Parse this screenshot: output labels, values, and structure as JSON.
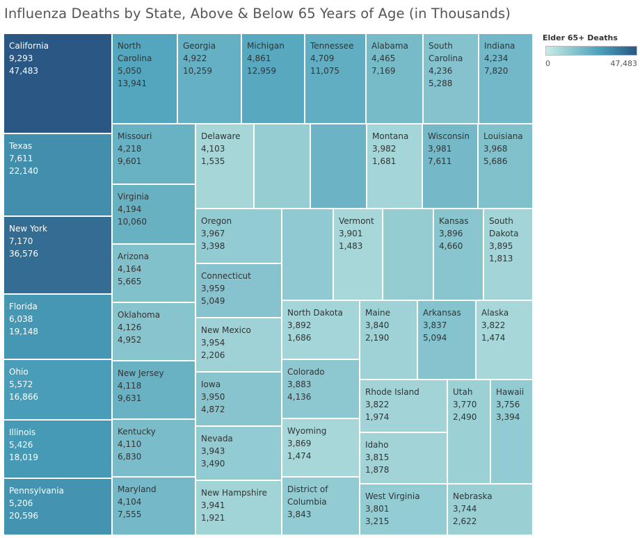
{
  "chart_data": {
    "type": "treemap",
    "title": "Influenza Deaths by State, Above & Below 65 Years of Age (in Thousands)",
    "size_measure": "Under 65 Deaths",
    "color_measure": "Elder 65+ Deaths",
    "legend": {
      "title": "Elder 65+ Deaths",
      "min_label": "0",
      "max_label": "47,483",
      "min": 0,
      "max": 47483,
      "position": "top-right",
      "color_low": "#c9ebe4",
      "color_high": "#2a5783"
    },
    "states": [
      {
        "name": "California",
        "under65": 9293,
        "elder65": 47483
      },
      {
        "name": "Texas",
        "under65": 7611,
        "elder65": 22140
      },
      {
        "name": "New York",
        "under65": 7170,
        "elder65": 36576
      },
      {
        "name": "Florida",
        "under65": 6038,
        "elder65": 19148
      },
      {
        "name": "Ohio",
        "under65": 5572,
        "elder65": 16866
      },
      {
        "name": "Illinois",
        "under65": 5426,
        "elder65": 18019
      },
      {
        "name": "Pennsylvania",
        "under65": 5206,
        "elder65": 20596
      },
      {
        "name": "North Carolina",
        "under65": 5050,
        "elder65": 13941
      },
      {
        "name": "Georgia",
        "under65": 4922,
        "elder65": 10259
      },
      {
        "name": "Michigan",
        "under65": 4861,
        "elder65": 12959
      },
      {
        "name": "Tennessee",
        "under65": 4709,
        "elder65": 11075
      },
      {
        "name": "Alabama",
        "under65": 4465,
        "elder65": 7169
      },
      {
        "name": "South Carolina",
        "under65": 4236,
        "elder65": 5288
      },
      {
        "name": "Indiana",
        "under65": 4234,
        "elder65": 7820
      },
      {
        "name": "Missouri",
        "under65": 4218,
        "elder65": 9601
      },
      {
        "name": "Virginia",
        "under65": 4194,
        "elder65": 10060
      },
      {
        "name": "Arizona",
        "under65": 4164,
        "elder65": 5665
      },
      {
        "name": "Oklahoma",
        "under65": 4126,
        "elder65": 4952
      },
      {
        "name": "New Jersey",
        "under65": 4118,
        "elder65": 9631
      },
      {
        "name": "Kentucky",
        "under65": 4110,
        "elder65": 6830
      },
      {
        "name": "Maryland",
        "under65": 4104,
        "elder65": 7555
      },
      {
        "name": "Delaware",
        "under65": 4103,
        "elder65": 1535
      },
      {
        "name": "",
        "under65": null,
        "elder65": 3100
      },
      {
        "name": "",
        "under65": null,
        "elder65": 9100
      },
      {
        "name": "Montana",
        "under65": 3982,
        "elder65": 1681
      },
      {
        "name": "Wisconsin",
        "under65": 3981,
        "elder65": 7611
      },
      {
        "name": "Louisiana",
        "under65": 3968,
        "elder65": 5686
      },
      {
        "name": "Oregon",
        "under65": 3967,
        "elder65": 3398
      },
      {
        "name": "",
        "under65": null,
        "elder65": 3700
      },
      {
        "name": "Vermont",
        "under65": 3901,
        "elder65": 1483
      },
      {
        "name": "",
        "under65": null,
        "elder65": 3300
      },
      {
        "name": "Kansas",
        "under65": 3896,
        "elder65": 4660
      },
      {
        "name": "South Dakota",
        "under65": 3895,
        "elder65": 1813
      },
      {
        "name": "Connecticut",
        "under65": 3959,
        "elder65": 5049
      },
      {
        "name": "New Mexico",
        "under65": 3954,
        "elder65": 2206
      },
      {
        "name": "North Dakota",
        "under65": 3892,
        "elder65": 1686
      },
      {
        "name": "Maine",
        "under65": 3840,
        "elder65": 2190
      },
      {
        "name": "Arkansas",
        "under65": 3837,
        "elder65": 5094
      },
      {
        "name": "Alaska",
        "under65": 3822,
        "elder65": 1474
      },
      {
        "name": "Iowa",
        "under65": 3950,
        "elder65": 4872
      },
      {
        "name": "Colorado",
        "under65": 3883,
        "elder65": 4136
      },
      {
        "name": "Rhode Island",
        "under65": 3822,
        "elder65": 1974
      },
      {
        "name": "Utah",
        "under65": 3770,
        "elder65": 2490
      },
      {
        "name": "Hawaii",
        "under65": 3756,
        "elder65": 3394
      },
      {
        "name": "Nevada",
        "under65": 3943,
        "elder65": 3490
      },
      {
        "name": "Wyoming",
        "under65": 3869,
        "elder65": 1474
      },
      {
        "name": "Idaho",
        "under65": 3815,
        "elder65": 1878
      },
      {
        "name": "New Hampshire",
        "under65": 3941,
        "elder65": 1921
      },
      {
        "name": "District of Columbia",
        "under65": 3843,
        "elder65": null
      },
      {
        "name": "West Virginia",
        "under65": 3801,
        "elder65": 3215
      },
      {
        "name": "Nebraska",
        "under65": 3744,
        "elder65": 2622
      }
    ]
  }
}
